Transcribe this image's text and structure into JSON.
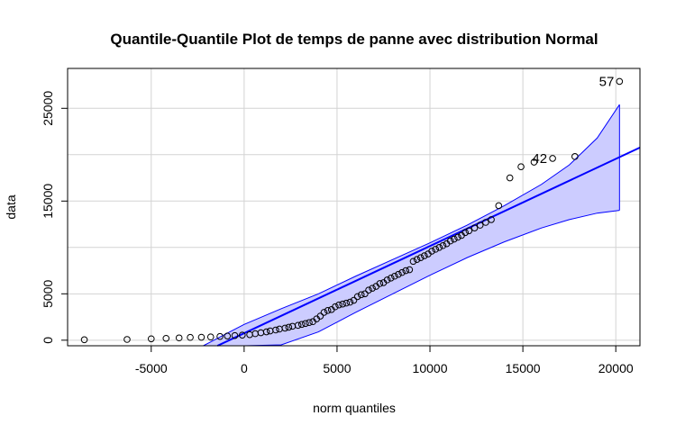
{
  "chart_data": {
    "type": "scatter",
    "title": "Quantile-Quantile Plot de temps de panne avec distribution Normal",
    "xlabel": "norm quantiles",
    "ylabel": "data",
    "xlim": [
      -9500,
      21300
    ],
    "ylim": [
      -600,
      29300
    ],
    "x_ticks": [
      -5000,
      0,
      5000,
      10000,
      15000,
      20000
    ],
    "y_ticks": [
      0,
      5000,
      15000,
      25000
    ],
    "grid": true,
    "colors": {
      "band_fill": "#ccccff",
      "band_edge": "#0000ff",
      "line": "#0000ff",
      "points": "#000000",
      "grid": "#d3d3d3"
    },
    "reference_line": {
      "intercept": 750,
      "slope": 0.94
    },
    "confidence_band": {
      "x": [
        -2200,
        0,
        2000,
        4000,
        6000,
        8000,
        10000,
        12000,
        14000,
        16000,
        17500,
        19000,
        20200
      ],
      "upper": [
        -600,
        1700,
        3400,
        5000,
        6900,
        8700,
        10500,
        12400,
        14500,
        16800,
        18900,
        21800,
        25400
      ],
      "lower": [
        -600,
        -600,
        -500,
        900,
        3000,
        5000,
        7000,
        8900,
        10600,
        12100,
        13000,
        13700,
        14000
      ]
    },
    "points": {
      "x": [
        -8600,
        -6300,
        -5000,
        -4200,
        -3500,
        -2900,
        -2300,
        -1800,
        -1300,
        -900,
        -500,
        -100,
        300,
        600,
        900,
        1200,
        1400,
        1700,
        1900,
        2200,
        2400,
        2600,
        2900,
        3100,
        3300,
        3500,
        3700,
        3900,
        4100,
        4300,
        4500,
        4700,
        4900,
        5100,
        5300,
        5500,
        5700,
        5900,
        6100,
        6300,
        6500,
        6700,
        6900,
        7100,
        7300,
        7500,
        7700,
        7900,
        8100,
        8300,
        8500,
        8700,
        8900,
        9100,
        9300,
        9500,
        9700,
        9900,
        10100,
        10300,
        10500,
        10700,
        10900,
        11100,
        11300,
        11500,
        11700,
        11900,
        12100,
        12400,
        12700,
        13000,
        13300,
        13700,
        14300,
        14900,
        15600,
        16600,
        17800,
        20200
      ],
      "y": [
        50,
        80,
        150,
        200,
        250,
        300,
        320,
        350,
        400,
        450,
        500,
        550,
        600,
        700,
        800,
        900,
        1000,
        1100,
        1200,
        1300,
        1400,
        1500,
        1600,
        1700,
        1800,
        1900,
        2000,
        2300,
        2600,
        3000,
        3200,
        3300,
        3600,
        3800,
        3900,
        4000,
        4100,
        4300,
        4700,
        4900,
        5000,
        5400,
        5600,
        5800,
        6100,
        6200,
        6500,
        6700,
        6900,
        7100,
        7300,
        7500,
        7600,
        8500,
        8700,
        8900,
        9100,
        9300,
        9600,
        9800,
        10000,
        10200,
        10400,
        10700,
        10900,
        11100,
        11300,
        11600,
        11800,
        12100,
        12400,
        12700,
        13000,
        14500,
        17500,
        18700,
        19200,
        19600,
        19800,
        27900
      ]
    },
    "labeled_points": [
      {
        "label": "57",
        "x": 20200,
        "y": 27900
      },
      {
        "label": "42",
        "x": 16600,
        "y": 19600
      }
    ]
  }
}
